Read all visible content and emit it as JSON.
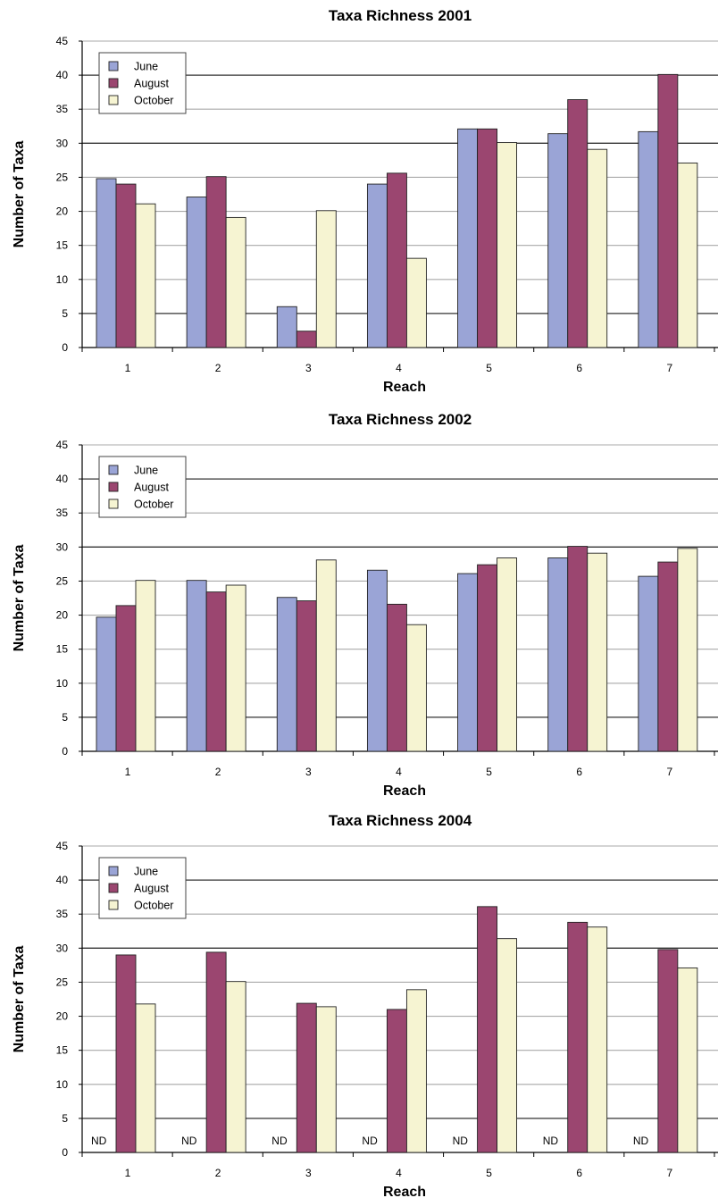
{
  "chart_data": [
    {
      "type": "bar",
      "title": "Taxa Richness 2001",
      "xlabel": "Reach",
      "ylabel": "Number of Taxa",
      "categories": [
        "1",
        "2",
        "3",
        "4",
        "5",
        "6",
        "7"
      ],
      "ylim": [
        0,
        45
      ],
      "yticks": [
        "0",
        "5",
        "10",
        "15",
        "20",
        "25",
        "30",
        "35",
        "40",
        "45"
      ],
      "grid": true,
      "legend_position": "top-left",
      "series": [
        {
          "name": "June",
          "color": "#9aa4d6",
          "values": [
            24.8,
            22.1,
            6.0,
            24.0,
            32.1,
            31.4,
            31.7
          ]
        },
        {
          "name": "August",
          "color": "#9b4670",
          "values": [
            24.0,
            25.1,
            2.4,
            25.6,
            32.1,
            36.4,
            40.1
          ]
        },
        {
          "name": "October",
          "color": "#f6f4d2",
          "values": [
            21.1,
            19.1,
            20.1,
            13.1,
            30.1,
            29.1,
            27.1
          ]
        }
      ],
      "annotations": []
    },
    {
      "type": "bar",
      "title": "Taxa Richness 2002",
      "xlabel": "Reach",
      "ylabel": "Number of Taxa",
      "categories": [
        "1",
        "2",
        "3",
        "4",
        "5",
        "6",
        "7"
      ],
      "ylim": [
        0,
        45
      ],
      "yticks": [
        "0",
        "5",
        "10",
        "15",
        "20",
        "25",
        "30",
        "35",
        "40",
        "45"
      ],
      "grid": true,
      "legend_position": "top-left",
      "series": [
        {
          "name": "June",
          "color": "#9aa4d6",
          "values": [
            19.7,
            25.1,
            22.6,
            26.6,
            26.1,
            28.4,
            25.7
          ]
        },
        {
          "name": "August",
          "color": "#9b4670",
          "values": [
            21.4,
            23.4,
            22.1,
            21.6,
            27.4,
            30.1,
            27.8
          ]
        },
        {
          "name": "October",
          "color": "#f6f4d2",
          "values": [
            25.1,
            24.4,
            28.1,
            18.6,
            28.4,
            29.1,
            29.8
          ]
        }
      ],
      "annotations": []
    },
    {
      "type": "bar",
      "title": "Taxa Richness 2004",
      "xlabel": "Reach",
      "ylabel": "Number of Taxa",
      "categories": [
        "1",
        "2",
        "3",
        "4",
        "5",
        "6",
        "7"
      ],
      "ylim": [
        0,
        45
      ],
      "yticks": [
        "0",
        "5",
        "10",
        "15",
        "20",
        "25",
        "30",
        "35",
        "40",
        "45"
      ],
      "grid": true,
      "legend_position": "top-left",
      "series": [
        {
          "name": "June",
          "color": "#9aa4d6",
          "values": [
            null,
            null,
            null,
            null,
            null,
            null,
            null
          ]
        },
        {
          "name": "August",
          "color": "#9b4670",
          "values": [
            29.0,
            29.4,
            21.9,
            21.0,
            36.1,
            33.8,
            29.8
          ]
        },
        {
          "name": "October",
          "color": "#f6f4d2",
          "values": [
            21.8,
            25.1,
            21.4,
            23.9,
            31.4,
            33.1,
            27.1
          ]
        }
      ],
      "annotations": [
        "ND",
        "ND",
        "ND",
        "ND",
        "ND",
        "ND",
        "ND"
      ]
    }
  ]
}
